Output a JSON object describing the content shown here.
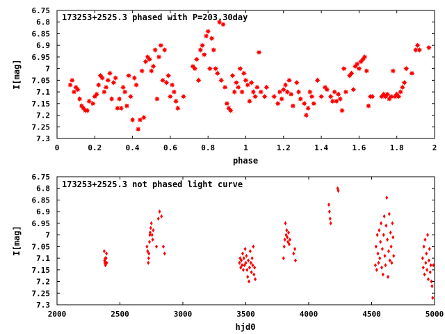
{
  "chart_data": [
    {
      "type": "scatter",
      "title": "173253+2525.3 phased with P=203.30day",
      "xlabel": "phase",
      "ylabel": "I[mag]",
      "xlim": [
        0,
        2
      ],
      "ylim": [
        7.3,
        6.75
      ],
      "y_inverted": true,
      "grid": false,
      "marker": "star",
      "color": "#ff0000",
      "xticks": [
        "0",
        "0.2",
        "0.4",
        "0.6",
        "0.8",
        "1",
        "1.2",
        "1.4",
        "1.6",
        "1.8",
        "2"
      ],
      "yticks": [
        "6.75",
        "6.8",
        "6.85",
        "6.9",
        "6.95",
        "7",
        "7.05",
        "7.1",
        "7.15",
        "7.2",
        "7.25",
        "7.3"
      ],
      "points": [
        [
          0.07,
          7.07
        ],
        [
          0.08,
          7.05
        ],
        [
          0.09,
          7.1
        ],
        [
          0.1,
          7.08
        ],
        [
          0.11,
          7.09
        ],
        [
          0.12,
          7.13
        ],
        [
          0.13,
          7.16
        ],
        [
          0.14,
          7.17
        ],
        [
          0.15,
          7.18
        ],
        [
          0.16,
          7.18
        ],
        [
          0.17,
          7.14
        ],
        [
          0.19,
          7.15
        ],
        [
          0.2,
          7.12
        ],
        [
          0.21,
          7.11
        ],
        [
          0.22,
          7.07
        ],
        [
          0.23,
          7.03
        ],
        [
          0.24,
          7.04
        ],
        [
          0.25,
          7.1
        ],
        [
          0.26,
          7.08
        ],
        [
          0.27,
          7.05
        ],
        [
          0.28,
          7.02
        ],
        [
          0.29,
          7.13
        ],
        [
          0.3,
          7.06
        ],
        [
          0.31,
          7.04
        ],
        [
          0.32,
          7.17
        ],
        [
          0.33,
          7.13
        ],
        [
          0.34,
          7.17
        ],
        [
          0.35,
          7.08
        ],
        [
          0.36,
          7.1
        ],
        [
          0.37,
          7.16
        ],
        [
          0.38,
          7.03
        ],
        [
          0.39,
          7.12
        ],
        [
          0.4,
          7.22
        ],
        [
          0.41,
          7.04
        ],
        [
          0.42,
          7.07
        ],
        [
          0.43,
          7.26
        ],
        [
          0.44,
          7.22
        ],
        [
          0.45,
          7.01
        ],
        [
          0.46,
          7.21
        ],
        [
          0.47,
          6.97
        ],
        [
          0.48,
          6.95
        ],
        [
          0.49,
          6.96
        ],
        [
          0.5,
          7.01
        ],
        [
          0.51,
          6.99
        ],
        [
          0.52,
          6.92
        ],
        [
          0.53,
          7.13
        ],
        [
          0.54,
          6.95
        ],
        [
          0.55,
          6.9
        ],
        [
          0.56,
          7.05
        ],
        [
          0.57,
          6.92
        ],
        [
          0.58,
          7.06
        ],
        [
          0.59,
          7.03
        ],
        [
          0.6,
          7.12
        ],
        [
          0.61,
          7.07
        ],
        [
          0.62,
          7.1
        ],
        [
          0.63,
          7.14
        ],
        [
          0.64,
          7.17
        ],
        [
          0.67,
          7.12
        ],
        [
          0.72,
          6.99
        ],
        [
          0.73,
          7.0
        ],
        [
          0.74,
          6.96
        ],
        [
          0.75,
          7.05
        ],
        [
          0.76,
          6.92
        ],
        [
          0.77,
          6.9
        ],
        [
          0.78,
          6.94
        ],
        [
          0.79,
          6.86
        ],
        [
          0.8,
          6.84
        ],
        [
          0.81,
          7.0
        ],
        [
          0.82,
          6.87
        ],
        [
          0.83,
          6.92
        ],
        [
          0.84,
          7.0
        ],
        [
          0.85,
          7.02
        ],
        [
          0.86,
          6.8
        ],
        [
          0.87,
          7.05
        ],
        [
          0.88,
          6.81
        ],
        [
          0.89,
          7.08
        ],
        [
          0.9,
          7.15
        ],
        [
          0.91,
          7.17
        ],
        [
          0.92,
          7.18
        ],
        [
          0.93,
          7.03
        ],
        [
          0.94,
          7.1
        ],
        [
          0.95,
          7.06
        ],
        [
          0.96,
          7.08
        ],
        [
          0.97,
          7.0
        ],
        [
          0.98,
          7.1
        ],
        [
          0.99,
          7.02
        ],
        [
          1.0,
          7.05
        ],
        [
          1.01,
          7.07
        ],
        [
          1.02,
          7.14
        ],
        [
          1.03,
          7.06
        ],
        [
          1.04,
          7.1
        ],
        [
          1.05,
          7.12
        ],
        [
          1.06,
          7.08
        ],
        [
          1.07,
          6.93
        ],
        [
          1.08,
          7.1
        ],
        [
          1.1,
          7.12
        ],
        [
          1.11,
          7.08
        ],
        [
          1.15,
          7.12
        ],
        [
          1.17,
          7.15
        ],
        [
          1.18,
          7.1
        ],
        [
          1.19,
          7.13
        ],
        [
          1.2,
          7.09
        ],
        [
          1.21,
          7.07
        ],
        [
          1.22,
          7.1
        ],
        [
          1.23,
          7.05
        ],
        [
          1.24,
          7.11
        ],
        [
          1.25,
          7.16
        ],
        [
          1.27,
          7.06
        ],
        [
          1.28,
          7.1
        ],
        [
          1.29,
          7.13
        ],
        [
          1.31,
          7.15
        ],
        [
          1.32,
          7.2
        ],
        [
          1.33,
          7.17
        ],
        [
          1.34,
          7.1
        ],
        [
          1.35,
          7.12
        ],
        [
          1.36,
          7.15
        ],
        [
          1.38,
          7.05
        ],
        [
          1.4,
          7.12
        ],
        [
          1.42,
          7.08
        ],
        [
          1.43,
          7.09
        ],
        [
          1.45,
          7.12
        ],
        [
          1.46,
          7.14
        ],
        [
          1.47,
          7.1
        ],
        [
          1.48,
          7.14
        ],
        [
          1.49,
          7.11
        ],
        [
          1.5,
          7.13
        ],
        [
          1.51,
          7.18
        ],
        [
          1.52,
          7.0
        ],
        [
          1.53,
          7.1
        ],
        [
          1.55,
          7.03
        ],
        [
          1.56,
          7.02
        ],
        [
          1.57,
          7.09
        ],
        [
          1.58,
          6.99
        ],
        [
          1.59,
          6.98
        ],
        [
          1.6,
          7.0
        ],
        [
          1.61,
          6.97
        ],
        [
          1.62,
          6.96
        ],
        [
          1.63,
          6.95
        ],
        [
          1.64,
          7.01
        ],
        [
          1.65,
          7.16
        ],
        [
          1.66,
          7.12
        ],
        [
          1.67,
          7.12
        ],
        [
          1.72,
          7.12
        ],
        [
          1.73,
          7.11
        ],
        [
          1.74,
          7.12
        ],
        [
          1.75,
          7.11
        ],
        [
          1.76,
          7.13
        ],
        [
          1.77,
          7.12
        ],
        [
          1.78,
          7.01
        ],
        [
          1.79,
          7.12
        ],
        [
          1.8,
          7.11
        ],
        [
          1.81,
          7.12
        ],
        [
          1.82,
          7.1
        ],
        [
          1.83,
          7.08
        ],
        [
          1.84,
          7.06
        ],
        [
          1.85,
          7.0
        ],
        [
          1.88,
          7.02
        ],
        [
          1.9,
          6.92
        ],
        [
          1.91,
          6.9
        ],
        [
          1.92,
          6.92
        ],
        [
          1.97,
          6.91
        ]
      ]
    },
    {
      "type": "scatter",
      "title": "173253+2525.3 not phased light curve",
      "xlabel": "hjd0",
      "ylabel": "I[mag]",
      "xlim": [
        2000,
        5000
      ],
      "ylim": [
        7.3,
        6.75
      ],
      "y_inverted": true,
      "grid": false,
      "marker": "diamond",
      "color": "#ff0000",
      "xticks": [
        "2000",
        "2500",
        "3000",
        "3500",
        "4000",
        "4500",
        "5000"
      ],
      "yticks": [
        "6.75",
        "6.8",
        "6.85",
        "6.9",
        "6.95",
        "7",
        "7.05",
        "7.1",
        "7.15",
        "7.2",
        "7.25",
        "7.3"
      ],
      "points": [
        [
          2375,
          7.07
        ],
        [
          2378,
          7.11
        ],
        [
          2380,
          7.12
        ],
        [
          2383,
          7.1
        ],
        [
          2385,
          7.13
        ],
        [
          2388,
          7.12
        ],
        [
          2390,
          7.1
        ],
        [
          2393,
          7.08
        ],
        [
          2395,
          7.12
        ],
        [
          2715,
          7.05
        ],
        [
          2720,
          7.07
        ],
        [
          2725,
          7.12
        ],
        [
          2728,
          7.1
        ],
        [
          2730,
          7.08
        ],
        [
          2735,
          7.03
        ],
        [
          2738,
          7.0
        ],
        [
          2740,
          6.99
        ],
        [
          2745,
          6.97
        ],
        [
          2750,
          6.95
        ],
        [
          2755,
          7.0
        ],
        [
          2760,
          7.02
        ],
        [
          2765,
          6.98
        ],
        [
          2790,
          7.05
        ],
        [
          2805,
          6.93
        ],
        [
          2815,
          6.9
        ],
        [
          2830,
          6.92
        ],
        [
          2845,
          7.05
        ],
        [
          2855,
          7.08
        ],
        [
          3450,
          7.12
        ],
        [
          3455,
          7.1
        ],
        [
          3460,
          7.14
        ],
        [
          3465,
          7.11
        ],
        [
          3470,
          7.13
        ],
        [
          3475,
          7.08
        ],
        [
          3480,
          7.15
        ],
        [
          3485,
          7.1
        ],
        [
          3490,
          7.13
        ],
        [
          3495,
          7.06
        ],
        [
          3500,
          7.12
        ],
        [
          3505,
          7.09
        ],
        [
          3510,
          7.15
        ],
        [
          3515,
          7.18
        ],
        [
          3520,
          7.11
        ],
        [
          3525,
          7.2
        ],
        [
          3530,
          7.14
        ],
        [
          3535,
          7.07
        ],
        [
          3540,
          7.12
        ],
        [
          3545,
          7.16
        ],
        [
          3550,
          7.1
        ],
        [
          3555,
          7.13
        ],
        [
          3560,
          7.05
        ],
        [
          3565,
          7.17
        ],
        [
          3570,
          7.14
        ],
        [
          3575,
          7.19
        ],
        [
          3800,
          7.1
        ],
        [
          3805,
          7.05
        ],
        [
          3810,
          7.02
        ],
        [
          3815,
          6.95
        ],
        [
          3820,
          7.0
        ],
        [
          3825,
          6.98
        ],
        [
          3830,
          7.01
        ],
        [
          3835,
          7.03
        ],
        [
          3840,
          6.99
        ],
        [
          3845,
          7.04
        ],
        [
          3850,
          7.02
        ],
        [
          3880,
          7.08
        ],
        [
          3890,
          7.06
        ],
        [
          3895,
          7.11
        ],
        [
          4160,
          6.87
        ],
        [
          4165,
          6.9
        ],
        [
          4170,
          6.93
        ],
        [
          4175,
          6.95
        ],
        [
          4230,
          6.8
        ],
        [
          4235,
          6.81
        ],
        [
          4530,
          7.13
        ],
        [
          4535,
          7.05
        ],
        [
          4540,
          7.15
        ],
        [
          4545,
          7.0
        ],
        [
          4550,
          7.08
        ],
        [
          4555,
          7.12
        ],
        [
          4560,
          6.98
        ],
        [
          4565,
          7.1
        ],
        [
          4570,
          7.03
        ],
        [
          4575,
          6.95
        ],
        [
          4580,
          7.14
        ],
        [
          4585,
          7.06
        ],
        [
          4590,
          7.17
        ],
        [
          4595,
          7.0
        ],
        [
          4600,
          6.92
        ],
        [
          4605,
          7.09
        ],
        [
          4610,
          7.13
        ],
        [
          4615,
          6.96
        ],
        [
          4620,
          6.84
        ],
        [
          4625,
          7.02
        ],
        [
          4630,
          7.18
        ],
        [
          4635,
          7.07
        ],
        [
          4640,
          6.91
        ],
        [
          4645,
          7.11
        ],
        [
          4650,
          6.99
        ],
        [
          4655,
          7.05
        ],
        [
          4660,
          7.12
        ],
        [
          4665,
          6.95
        ],
        [
          4670,
          7.01
        ],
        [
          4675,
          7.09
        ],
        [
          4905,
          7.1
        ],
        [
          4910,
          7.14
        ],
        [
          4915,
          7.05
        ],
        [
          4920,
          7.17
        ],
        [
          4925,
          7.02
        ],
        [
          4930,
          7.12
        ],
        [
          4935,
          7.08
        ],
        [
          4940,
          7.15
        ],
        [
          4945,
          7.0
        ],
        [
          4950,
          7.19
        ],
        [
          4955,
          7.11
        ],
        [
          4960,
          7.06
        ],
        [
          4965,
          7.16
        ],
        [
          4970,
          7.13
        ],
        [
          4975,
          7.2
        ],
        [
          4980,
          7.22
        ],
        [
          4985,
          7.27
        ],
        [
          4990,
          7.13
        ]
      ]
    }
  ]
}
